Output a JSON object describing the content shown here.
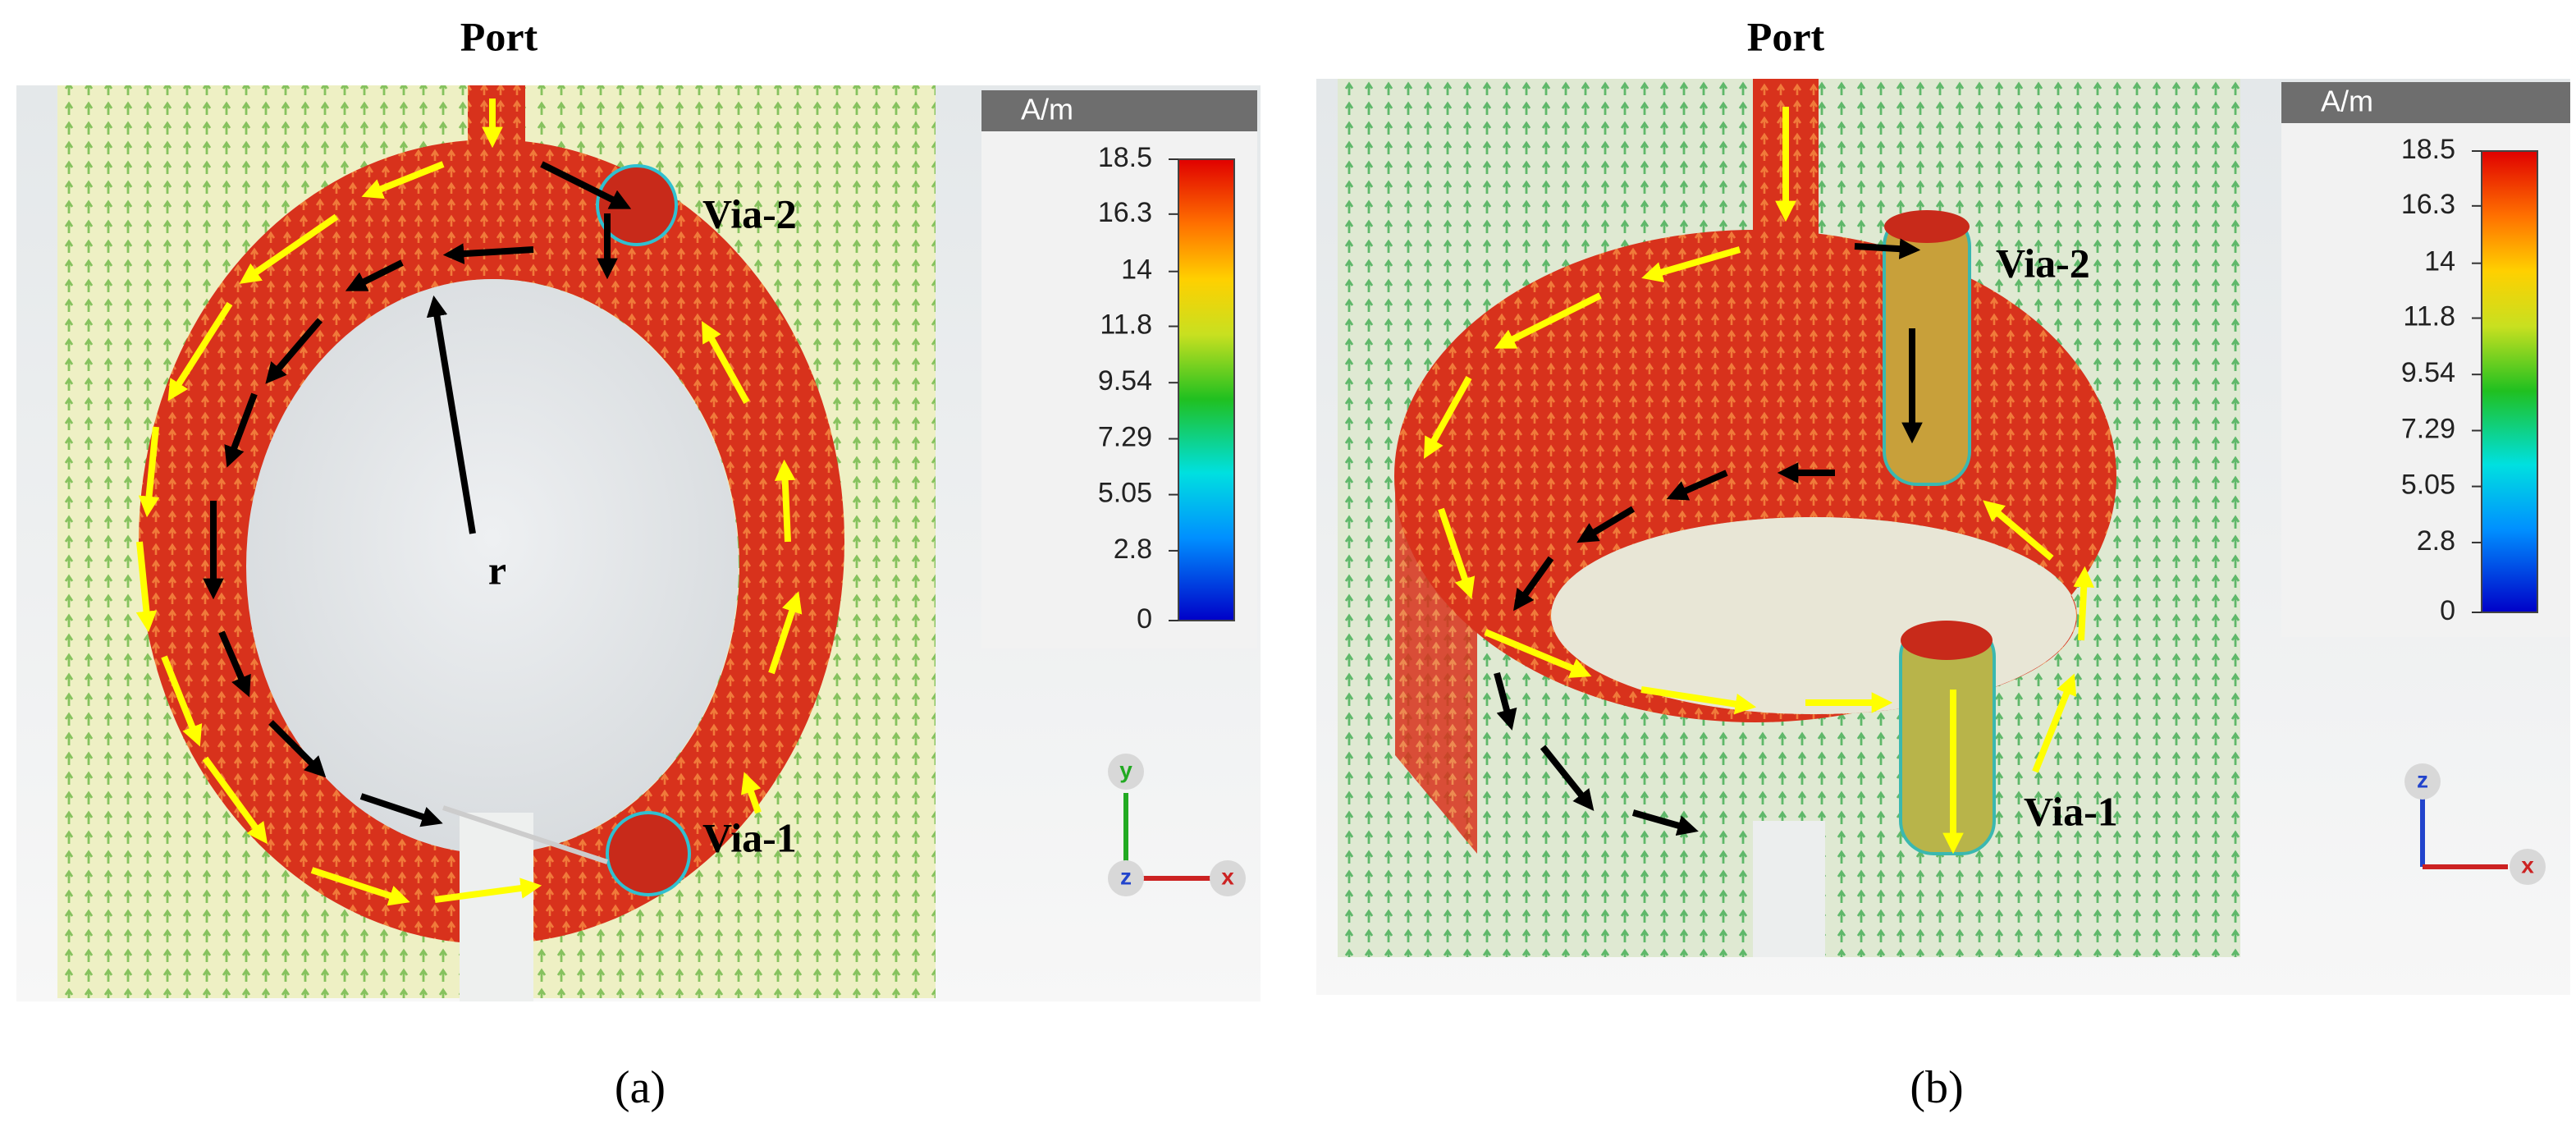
{
  "panels": [
    {
      "label": "(a)",
      "port": "Port",
      "via_2": "Via-2",
      "via_1": "Via-1",
      "radius": "r",
      "legend": {
        "unit": "A/m",
        "ticks": [
          18.5,
          16.3,
          14,
          11.8,
          9.54,
          7.29,
          5.05,
          2.8,
          0
        ]
      },
      "axes": {
        "y": "y",
        "z": "z",
        "x": "x"
      }
    },
    {
      "label": "(b)",
      "port": "Port",
      "via_2": "Via-2",
      "via_1": "Via-1",
      "legend": {
        "unit": "A/m",
        "ticks": [
          18.5,
          16.3,
          14,
          11.8,
          9.54,
          7.29,
          5.05,
          2.8,
          0
        ]
      },
      "axes": {
        "z": "z",
        "x": "x"
      }
    }
  ]
}
